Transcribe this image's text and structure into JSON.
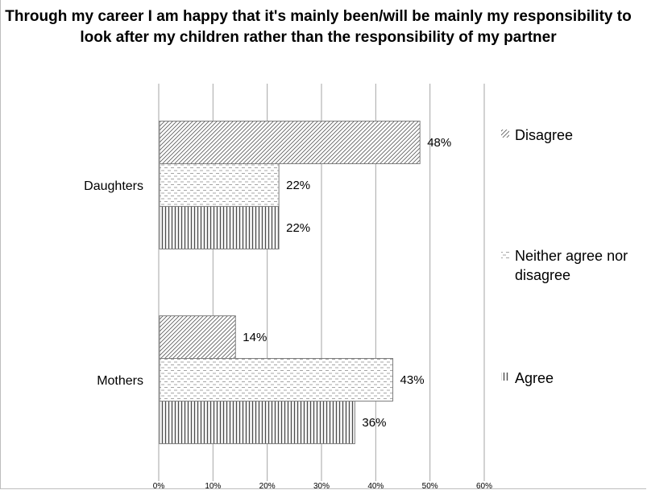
{
  "chart_data": {
    "type": "bar",
    "orientation": "horizontal",
    "title": "Through my career I am happy that it's mainly been/will be mainly my responsibility to look after my children rather than the responsibility of my partner",
    "categories": [
      "Daughters",
      "Mothers"
    ],
    "series": [
      {
        "name": "Disagree",
        "values": [
          48,
          14
        ],
        "labels": [
          "48%",
          "14%"
        ],
        "pattern": "diagonal"
      },
      {
        "name": "Neither agree nor disagree",
        "values": [
          22,
          43
        ],
        "labels": [
          "22%",
          "43%"
        ],
        "pattern": "dashes"
      },
      {
        "name": "Agree",
        "values": [
          22,
          36
        ],
        "labels": [
          "22%",
          "36%"
        ],
        "pattern": "vertical"
      }
    ],
    "xlim": [
      0,
      60
    ],
    "xticks": [
      "0%",
      "10%",
      "20%",
      "30%",
      "40%",
      "50%",
      "60%"
    ],
    "grid": true,
    "legend": "right",
    "colors": {
      "grid": "#a6a6a6",
      "bar_border": "#7f7f7f",
      "pattern": "#595959"
    }
  }
}
